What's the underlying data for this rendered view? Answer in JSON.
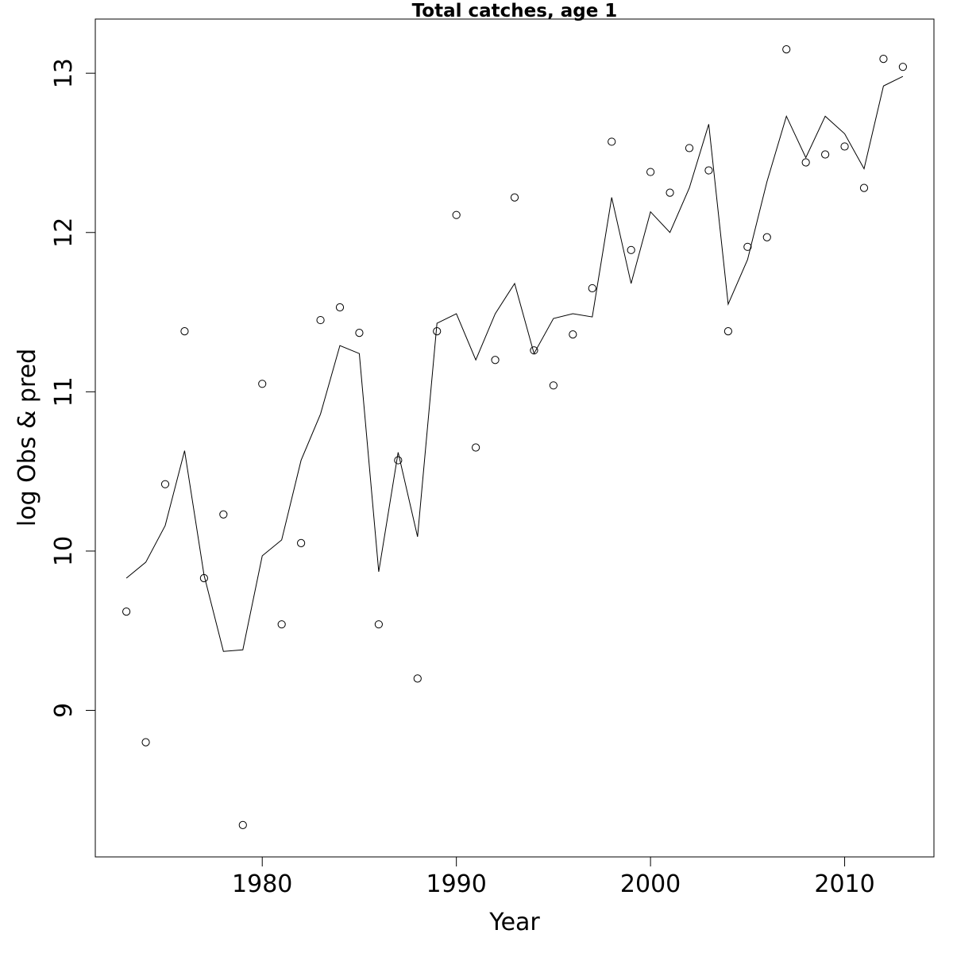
{
  "chart_data": {
    "type": "line",
    "title": "Total catches, age 1",
    "xlabel": "Year",
    "ylabel": "log Obs & pred",
    "xlim": [
      1971.4,
      2014.6
    ],
    "ylim": [
      8.08,
      13.34
    ],
    "x_ticks": [
      1980,
      1990,
      2000,
      2010
    ],
    "y_ticks": [
      9,
      10,
      11,
      12,
      13
    ],
    "grid": false,
    "legend": "none",
    "series": [
      {
        "style": "points",
        "x": [
          1973,
          1974,
          1975,
          1976,
          1977,
          1978,
          1979,
          1980,
          1981,
          1982,
          1983,
          1984,
          1985,
          1986,
          1987,
          1988,
          1989,
          1990,
          1991,
          1992,
          1993,
          1994,
          1995,
          1996,
          1997,
          1998,
          1999,
          2000,
          2001,
          2002,
          2003,
          2004,
          2005,
          2006,
          2007,
          2008,
          2009,
          2010,
          2011,
          2012,
          2013
        ],
        "values": [
          9.62,
          8.8,
          10.42,
          11.38,
          9.83,
          10.23,
          8.28,
          11.05,
          9.54,
          10.05,
          11.45,
          11.53,
          11.37,
          9.54,
          10.57,
          9.2,
          11.38,
          12.11,
          10.65,
          11.2,
          12.22,
          11.26,
          11.04,
          11.36,
          11.65,
          12.57,
          11.89,
          12.38,
          12.25,
          12.53,
          12.39,
          11.38,
          11.91,
          11.97,
          13.15,
          12.44,
          12.49,
          12.54,
          12.28,
          13.09,
          13.04
        ]
      },
      {
        "style": "line",
        "x": [
          1973,
          1974,
          1975,
          1976,
          1977,
          1978,
          1979,
          1980,
          1981,
          1982,
          1983,
          1984,
          1985,
          1986,
          1987,
          1988,
          1989,
          1990,
          1991,
          1992,
          1993,
          1994,
          1995,
          1996,
          1997,
          1998,
          1999,
          2000,
          2001,
          2002,
          2003,
          2004,
          2005,
          2006,
          2007,
          2008,
          2009,
          2010,
          2011,
          2012,
          2013
        ],
        "values": [
          9.83,
          9.93,
          10.16,
          10.63,
          9.85,
          9.37,
          9.38,
          9.97,
          10.07,
          10.57,
          10.86,
          11.29,
          11.24,
          9.87,
          10.62,
          10.09,
          11.43,
          11.49,
          11.2,
          11.49,
          11.68,
          11.24,
          11.46,
          11.49,
          11.47,
          12.22,
          11.68,
          12.13,
          12.0,
          12.28,
          12.68,
          11.55,
          11.83,
          12.32,
          12.73,
          12.47,
          12.73,
          12.62,
          12.4,
          12.92,
          12.98
        ]
      }
    ]
  }
}
